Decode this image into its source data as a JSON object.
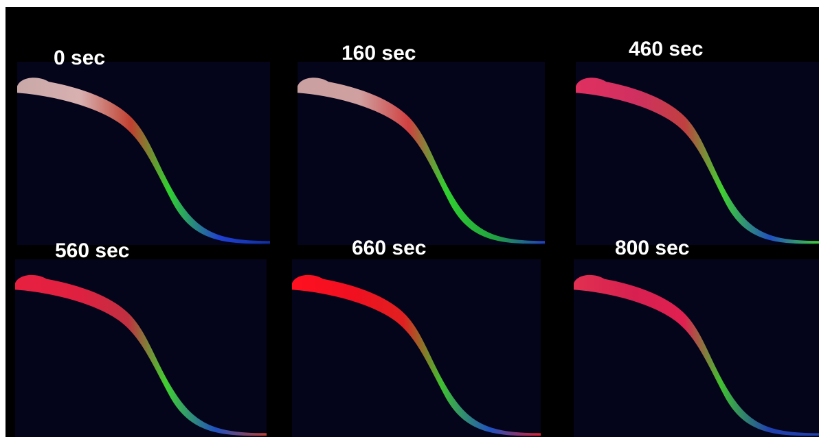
{
  "panels": [
    {
      "label": "0 sec"
    },
    {
      "label": "160 sec"
    },
    {
      "label": "460 sec"
    },
    {
      "label": "560 sec"
    },
    {
      "label": "660 sec"
    },
    {
      "label": "800 sec"
    }
  ]
}
